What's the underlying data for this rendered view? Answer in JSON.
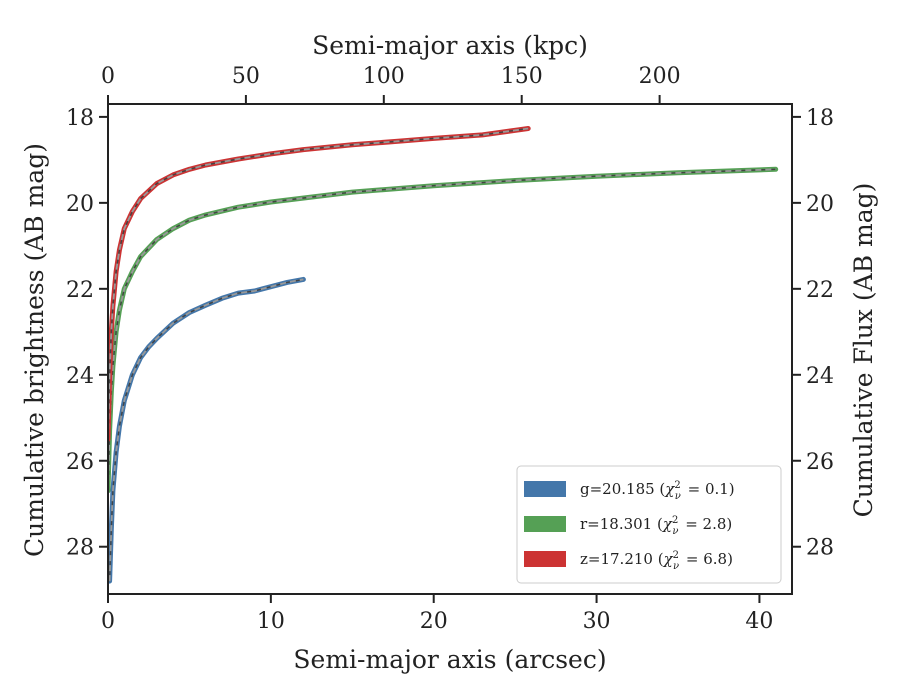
{
  "chart_data": {
    "type": "line",
    "xlabel": "Semi-major axis (arcsec)",
    "ylabel": "Cumulative brightness (AB mag)",
    "top_xlabel": "Semi-major axis (kpc)",
    "right_ylabel": "Cumulative Flux (AB mag)",
    "xlim": [
      0,
      42
    ],
    "ylim": [
      29.1,
      17.7
    ],
    "y_inverted": true,
    "top_xlim": [
      0,
      248
    ],
    "x_ticks": [
      0,
      10,
      20,
      30,
      40
    ],
    "y_ticks": [
      18,
      20,
      22,
      24,
      26,
      28
    ],
    "top_ticks": [
      0,
      50,
      100,
      150,
      200
    ],
    "grid": false,
    "legend_position": "lower-right",
    "series": [
      {
        "name": "g=20.185",
        "chi": "2",
        "chi_val": "0.1",
        "color": "#4477aa",
        "x": [
          0.1,
          0.2,
          0.3,
          0.5,
          0.7,
          1.0,
          1.5,
          2.0,
          2.5,
          3.0,
          4.0,
          5.0,
          6.0,
          7.0,
          8.0,
          9.0,
          9.5,
          10.0,
          11.0,
          12.0
        ],
        "y": [
          28.8,
          27.6,
          26.7,
          25.8,
          25.2,
          24.6,
          24.0,
          23.6,
          23.35,
          23.15,
          22.8,
          22.55,
          22.38,
          22.22,
          22.1,
          22.05,
          22.0,
          21.95,
          21.85,
          21.78
        ]
      },
      {
        "name": "r=18.301",
        "chi": "2",
        "chi_val": "2.8",
        "color": "#55a055",
        "x": [
          0.0,
          0.1,
          0.2,
          0.3,
          0.5,
          0.7,
          1.0,
          1.5,
          2.0,
          3.0,
          4.0,
          5.0,
          6.0,
          8.0,
          10.0,
          15.0,
          20.0,
          25.0,
          30.0,
          35.0,
          41.0
        ],
        "y": [
          26.7,
          25.3,
          24.4,
          23.8,
          23.0,
          22.5,
          22.0,
          21.6,
          21.25,
          20.85,
          20.6,
          20.4,
          20.28,
          20.1,
          19.98,
          19.75,
          19.6,
          19.48,
          19.38,
          19.3,
          19.22
        ]
      },
      {
        "name": "z=17.210",
        "chi": "2",
        "chi_val": "6.8",
        "color": "#cc3333",
        "x": [
          0.0,
          0.1,
          0.2,
          0.3,
          0.5,
          0.7,
          1.0,
          1.5,
          2.0,
          3.0,
          4.0,
          5.0,
          6.0,
          8.0,
          10.0,
          12.0,
          15.0,
          18.0,
          20.0,
          23.0,
          25.8
        ],
        "y": [
          25.5,
          24.0,
          23.0,
          22.4,
          21.6,
          21.1,
          20.6,
          20.2,
          19.9,
          19.55,
          19.35,
          19.22,
          19.12,
          18.98,
          18.86,
          18.76,
          18.65,
          18.56,
          18.5,
          18.42,
          18.27
        ]
      }
    ]
  }
}
